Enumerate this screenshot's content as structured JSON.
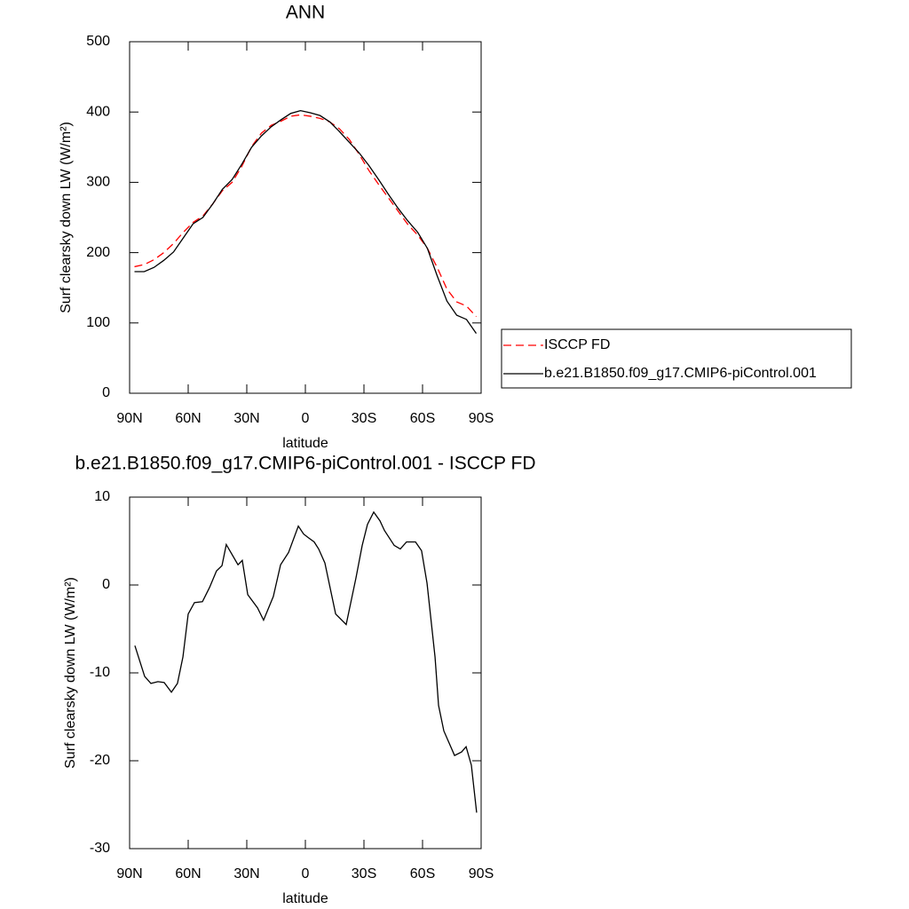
{
  "chart_data": [
    {
      "type": "line",
      "title": "ANN",
      "x_label": "latitude",
      "y_label": "Surf clearsky down LW (W/m²)",
      "x": [
        87.5,
        82.5,
        77.5,
        72.5,
        67.5,
        62.5,
        57.5,
        52.5,
        47.5,
        42.5,
        37.5,
        32.5,
        27.5,
        22.5,
        17.5,
        12.5,
        7.5,
        2.5,
        -2.5,
        -7.5,
        -12.5,
        -17.5,
        -22.5,
        -27.5,
        -32.5,
        -37.5,
        -42.5,
        -47.5,
        -52.5,
        -57.5,
        -62.5,
        -67.5,
        -72.5,
        -77.5,
        -82.5,
        -87.5
      ],
      "series": [
        {
          "name": "ISCCP FD",
          "color": "#ff0000",
          "line_style": "dashed",
          "values": [
            180,
            183,
            190,
            200,
            213,
            229,
            243,
            252,
            269,
            288,
            300,
            323,
            351,
            370,
            381,
            387,
            394,
            396,
            394,
            391,
            386,
            376,
            361,
            340,
            317,
            297,
            278,
            259,
            240,
            225,
            206,
            179,
            148,
            130,
            124,
            109
          ]
        },
        {
          "name": "b.e21.B1850.f09_g17.CMIP6-piControl.001",
          "color": "#000000",
          "line_style": "solid",
          "values": [
            173,
            173,
            179,
            189,
            201,
            221,
            241,
            250,
            269,
            290,
            304,
            326,
            350,
            366,
            379,
            389,
            398,
            402,
            399,
            395,
            386,
            372,
            357,
            342,
            324,
            304,
            283,
            263,
            245,
            229,
            206,
            167,
            131,
            111,
            105,
            85
          ]
        }
      ],
      "xlim": [
        90,
        -90
      ],
      "xticks": [
        {
          "value": 90,
          "label": "90N"
        },
        {
          "value": 60,
          "label": "60N"
        },
        {
          "value": 30,
          "label": "30N"
        },
        0,
        {
          "value": -30,
          "label": "30S"
        },
        {
          "value": -60,
          "label": "60S"
        },
        {
          "value": -90,
          "label": "90S"
        }
      ],
      "ylim": [
        0,
        500
      ],
      "yticks": [
        0,
        100,
        200,
        300,
        400,
        500
      ],
      "legend": "right"
    },
    {
      "type": "line",
      "title": "b.e21.B1850.f09_g17.CMIP6-piControl.001 - ISCCP FD",
      "x_label": "latitude",
      "y_label": "Surf clearsky down LW (W/m²)",
      "x": [
        87.3,
        82.3,
        79.1,
        75.5,
        72.3,
        68.6,
        65.5,
        62.7,
        60.0,
        56.8,
        52.7,
        49.1,
        45.5,
        42.7,
        40.5,
        34.5,
        32.3,
        29.5,
        24.5,
        21.4,
        16.4,
        12.7,
        8.6,
        3.6,
        0.9,
        -1.4,
        -4.5,
        -6.8,
        -10,
        -15.5,
        -20.9,
        -25.9,
        -29.1,
        -31.8,
        -35,
        -38.2,
        -40.5,
        -45.5,
        -48.6,
        -51.8,
        -56.4,
        -59.5,
        -62.3,
        -66.4,
        -68.2,
        -70.9,
        -76.4,
        -80,
        -82.3,
        -85,
        -87.7
      ],
      "values": [
        -6.9,
        -10.4,
        -11.2,
        -11.0,
        -11.1,
        -12.2,
        -11.2,
        -8.2,
        -3.3,
        -2.0,
        -1.9,
        -0.3,
        1.6,
        2.2,
        4.6,
        2.3,
        2.8,
        -1.1,
        -2.6,
        -4.0,
        -1.3,
        2.3,
        3.7,
        6.7,
        5.8,
        5.4,
        4.9,
        4.1,
        2.5,
        -3.3,
        -4.5,
        0.8,
        4.5,
        6.9,
        8.3,
        7.3,
        6.2,
        4.5,
        4.1,
        4.9,
        4.9,
        3.9,
        0.2,
        -8.2,
        -13.7,
        -16.6,
        -19.4,
        -19.0,
        -18.4,
        -20.5,
        -25.9
      ],
      "color": "#000000",
      "xlim": [
        90,
        -90
      ],
      "xticks": [
        {
          "value": 90,
          "label": "90N"
        },
        {
          "value": 60,
          "label": "60N"
        },
        {
          "value": 30,
          "label": "30N"
        },
        0,
        {
          "value": -30,
          "label": "30S"
        },
        {
          "value": -60,
          "label": "60S"
        },
        {
          "value": -90,
          "label": "90S"
        }
      ],
      "ylim": [
        -30,
        10
      ],
      "yticks": [
        -30,
        -20,
        -10,
        0,
        10
      ]
    }
  ]
}
